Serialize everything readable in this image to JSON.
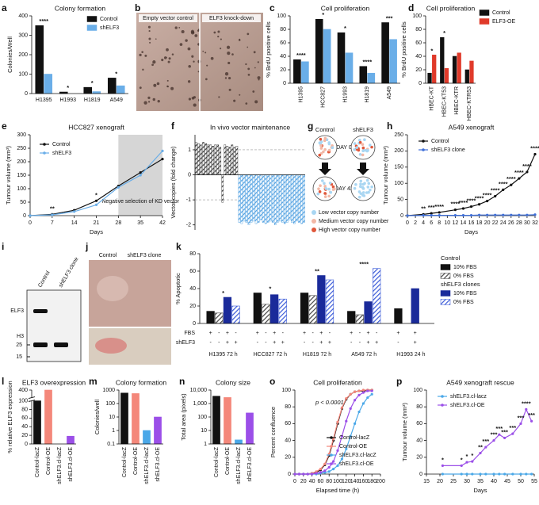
{
  "chart_data": [
    {
      "type": "bar",
      "label": "a",
      "title": "Colony formation",
      "ylabel": "Colonies/Well",
      "categories": [
        "H1395",
        "H1993",
        "H1819",
        "A549"
      ],
      "series": [
        {
          "name": "Control",
          "color": "#111111",
          "values": [
            350,
            8,
            32,
            80
          ]
        },
        {
          "name": "shELF3",
          "color": "#6aaee8",
          "values": [
            100,
            0,
            10,
            40
          ]
        }
      ],
      "annotations": [
        "****",
        "*",
        "*",
        "*"
      ],
      "ylim": [
        0,
        400
      ],
      "yticks": [
        0,
        100,
        200,
        300,
        400
      ]
    },
    {
      "type": "image",
      "label": "b",
      "captions": [
        "Empty vector control",
        "ELF3 knock-down"
      ]
    },
    {
      "type": "bar",
      "label": "c",
      "title": "Cell proliferation",
      "ylabel": "% BrdU positive cells",
      "categories": [
        "H1395",
        "HCC827",
        "H1993",
        "H1819",
        "A549"
      ],
      "series": [
        {
          "name": "Control",
          "color": "#111111",
          "values": [
            35,
            95,
            75,
            25,
            90
          ]
        },
        {
          "name": "shELF3",
          "color": "#6aaee8",
          "values": [
            32,
            80,
            45,
            15,
            65
          ]
        }
      ],
      "annotations": [
        "****",
        "*",
        "*",
        "****",
        "***"
      ],
      "ylim": [
        0,
        100
      ],
      "yticks": [
        0,
        20,
        40,
        60,
        80,
        100
      ]
    },
    {
      "type": "bar",
      "label": "d",
      "title": "Cell proliferation",
      "ylabel": "% BrdU positive cells",
      "categories": [
        "HBEC-KT",
        "HBEC-KT53",
        "HBEC-KTR",
        "HBEC-KTR53"
      ],
      "series": [
        {
          "name": "Control",
          "color": "#111111",
          "values": [
            15,
            68,
            40,
            20
          ]
        },
        {
          "name": "ELF3-OE",
          "color": "#e03a2a",
          "values": [
            42,
            22,
            45,
            33
          ]
        }
      ],
      "annotations": [
        "*",
        "*",
        null,
        null
      ],
      "ylim": [
        0,
        100
      ],
      "yticks": [
        0,
        20,
        40,
        60,
        80,
        100
      ]
    },
    {
      "type": "line",
      "label": "e",
      "title": "HCC827 xenograft",
      "ylabel": "Tumour volume (mm³)",
      "xlabel": "Days",
      "x": [
        0,
        7,
        14,
        21,
        28,
        35,
        42
      ],
      "series": [
        {
          "name": "Control",
          "color": "#111111",
          "values": [
            0,
            5,
            20,
            55,
            110,
            160,
            210
          ],
          "annotations": [
            null,
            "**",
            null,
            "*",
            null,
            null,
            null
          ]
        },
        {
          "name": "shELF3",
          "color": "#6aaee8",
          "values": [
            0,
            3,
            15,
            40,
            105,
            150,
            240
          ]
        }
      ],
      "shade": {
        "range": [
          28,
          42
        ],
        "label": "Negative selection of KD vector"
      },
      "xlim": [
        0,
        42
      ],
      "xticks": [
        0,
        7,
        14,
        21,
        28,
        35,
        42
      ],
      "ylim": [
        0,
        300
      ],
      "yticks": [
        0,
        50,
        100,
        150,
        200,
        250,
        300
      ]
    },
    {
      "type": "bar_sequence",
      "label": "f",
      "title": "In vivo vector maintenance",
      "ylabel": "Vector copies (fold change)",
      "series": [
        {
          "color": "#333333",
          "hatch": true,
          "values": [
            1.3,
            1.25,
            1.2,
            1.3,
            1.25,
            1.2,
            1.2,
            1.15,
            1.2,
            1.2,
            1.1,
            -1.1,
            1.2,
            1.15,
            1.1,
            1.2,
            1.1,
            1.15
          ]
        },
        {
          "color": "#4a9de0",
          "hatch": true,
          "values": [
            -1.9,
            -1.95,
            -1.85,
            -1.9,
            -2.0,
            -1.9,
            -1.85,
            -1.95,
            -1.9,
            -1.8,
            -1.9,
            -1.95,
            -1.9,
            -1.85,
            -1.9,
            -2.0,
            -1.9,
            -1.85,
            -1.9,
            -1.95,
            -1.9,
            -1.8,
            -1.9,
            -1.95,
            -1.85,
            -1.9,
            -1.95,
            -1.9
          ]
        }
      ],
      "ylim": [
        -2.2,
        1.6
      ],
      "yticks": [
        -2,
        -1,
        0,
        1
      ]
    },
    {
      "type": "schematic",
      "label": "g",
      "columns": [
        "Control",
        "shELF3"
      ],
      "days": [
        "DAY 0",
        "DAY 42"
      ],
      "legend": [
        {
          "label": "Low vector copy number",
          "color": "#a9d6f2"
        },
        {
          "label": "Medium vector copy number",
          "color": "#f2b8a6"
        },
        {
          "label": "High vector copy number",
          "color": "#e0573a"
        }
      ]
    },
    {
      "type": "line",
      "label": "h",
      "title": "A549 xenograft",
      "ylabel": "Tumour volume (mm³)",
      "xlabel": "Days",
      "x": [
        0,
        4,
        6,
        8,
        12,
        14,
        16,
        18,
        20,
        22,
        24,
        26,
        28,
        30,
        32
      ],
      "series": [
        {
          "name": "Control",
          "color": "#111111",
          "values": [
            0,
            4,
            7,
            10,
            18,
            22,
            28,
            35,
            45,
            60,
            80,
            95,
            115,
            135,
            190
          ],
          "annotations": [
            null,
            "**",
            "***",
            "****",
            "****",
            "****",
            "****",
            "****",
            "****",
            "****",
            "****",
            "****",
            "****",
            "****",
            "****"
          ]
        },
        {
          "name": "shELF3 clone",
          "color": "#3f6fd8",
          "values": [
            0,
            1,
            1,
            1,
            1,
            1,
            1,
            2,
            2,
            2,
            2,
            2,
            2,
            2,
            3
          ]
        }
      ],
      "xlim": [
        0,
        32
      ],
      "xticks": [
        0,
        2,
        4,
        6,
        8,
        10,
        12,
        14,
        16,
        18,
        20,
        22,
        24,
        26,
        28,
        30,
        32
      ],
      "ylim": [
        0,
        250
      ],
      "yticks": [
        0,
        50,
        100,
        150,
        200,
        250
      ]
    },
    {
      "type": "image",
      "label": "i",
      "captions": [
        "Control",
        "shELF3 clone"
      ],
      "bands": [
        "ELF3",
        "H3"
      ],
      "markers": [
        "25",
        "15"
      ]
    },
    {
      "type": "image",
      "label": "j",
      "captions": [
        "Control",
        "shELF3 clone"
      ]
    },
    {
      "type": "bar",
      "label": "k",
      "ylabel": "% Apoptotic",
      "categories": [
        "H1395 72 h",
        "HCC827 72 h",
        "H1819 72 h",
        "A549 72 h",
        "H1993 24 h"
      ],
      "legend_groups": [
        "Control",
        "shELF3 clones"
      ],
      "series": [
        {
          "name": "10% FBS",
          "color": "#111111",
          "values": [
            14,
            35,
            35,
            14,
            17
          ]
        },
        {
          "name": "0% FBS",
          "color": "#444444",
          "hatch": true,
          "values": [
            12,
            22,
            32,
            10,
            null
          ]
        },
        {
          "name": "10% FBS",
          "color": "#1a2a9a",
          "values": [
            30,
            33,
            55,
            25,
            40
          ]
        },
        {
          "name": "0% FBS",
          "color": "#3a5ad8",
          "hatch": true,
          "values": [
            20,
            28,
            50,
            63,
            null
          ]
        }
      ],
      "condition_rows": [
        {
          "label": "FBS",
          "values": [
            "+",
            "-",
            "+",
            "-"
          ]
        },
        {
          "label": "shELF3",
          "values": [
            "-",
            "-",
            "+",
            "+"
          ]
        }
      ],
      "annotations": [
        "*",
        "*",
        "**",
        "****",
        null
      ],
      "ylim": [
        0,
        80
      ],
      "yticks": [
        0,
        20,
        40,
        60,
        80
      ]
    },
    {
      "type": "bar",
      "label": "l",
      "title": "ELF3 overexpression",
      "ylabel": "% relative ELF3 expression",
      "categories": [
        "Control-lacZ",
        "Control-OE",
        "shELF3.cl-lacZ",
        "shELF3.cl-OE"
      ],
      "values": [
        100,
        400,
        0,
        18
      ],
      "colors": [
        "#111111",
        "#f4877a",
        "#4aa8e8",
        "#9b4fe8"
      ],
      "broken_y": true,
      "ylim": [
        0,
        400
      ],
      "yticks": [
        0,
        20,
        40,
        60,
        80,
        100,
        400
      ]
    },
    {
      "type": "bar",
      "label": "m",
      "title": "Colony formation",
      "ylabel": "Colonies/well",
      "categories": [
        "Control-lacZ",
        "Control-OE",
        "shELF3.cl-lacZ",
        "shELF3.cl-OE"
      ],
      "values": [
        600,
        550,
        1,
        10
      ],
      "colors": [
        "#111111",
        "#f4877a",
        "#4aa8e8",
        "#9b4fe8"
      ],
      "log_y": true,
      "ylim": [
        0.1,
        1000
      ],
      "yticks": [
        0.1,
        1,
        10,
        100,
        1000
      ]
    },
    {
      "type": "bar",
      "label": "n",
      "title": "Colony size",
      "ylabel": "Total area (pixels)",
      "categories": [
        "Control-lacZ",
        "Control-OE",
        "shELF3.cl-lacZ",
        "shELF3.cl-OE"
      ],
      "values": [
        3500,
        2800,
        2,
        200
      ],
      "colors": [
        "#111111",
        "#f4877a",
        "#4aa8e8",
        "#9b4fe8"
      ],
      "log_y": true,
      "ylim": [
        1,
        10000
      ],
      "yticks": [
        1,
        10,
        100,
        {
          "value": 1000,
          "label": "1,000"
        },
        {
          "value": 10000,
          "label": "10,000"
        }
      ]
    },
    {
      "type": "line",
      "label": "o",
      "title": "Cell proliferation",
      "ylabel": "Percent confluence",
      "xlabel": "Elapsed time (h)",
      "note": "p < 0.0001",
      "x": [
        0,
        10,
        20,
        30,
        40,
        50,
        60,
        70,
        80,
        90,
        100,
        110,
        120,
        130,
        140,
        150,
        160,
        170,
        180
      ],
      "series": [
        {
          "name": "Control-lacZ",
          "color": "#111111",
          "values": [
            0,
            0,
            0,
            0,
            1,
            2,
            5,
            11,
            22,
            40,
            60,
            78,
            89,
            95,
            98,
            99,
            99,
            100,
            100
          ]
        },
        {
          "name": "Control-OE",
          "color": "#f4877a",
          "values": [
            0,
            0,
            0,
            0,
            1,
            3,
            6,
            12,
            24,
            42,
            62,
            79,
            90,
            95,
            98,
            99,
            100,
            100,
            100
          ]
        },
        {
          "name": "shELF3.cl-lacZ",
          "color": "#4aa8e8",
          "values": [
            0,
            0,
            0,
            0,
            0,
            0,
            1,
            2,
            3,
            6,
            10,
            18,
            30,
            45,
            60,
            74,
            84,
            91,
            95
          ]
        },
        {
          "name": "shELF3.cl-OE",
          "color": "#9b4fe8",
          "values": [
            0,
            0,
            0,
            0,
            0,
            1,
            2,
            4,
            8,
            15,
            28,
            45,
            63,
            78,
            88,
            94,
            97,
            99,
            99
          ]
        }
      ],
      "xlim": [
        0,
        200
      ],
      "xticks": [
        0,
        20,
        40,
        60,
        80,
        100,
        120,
        140,
        160,
        180,
        200
      ],
      "ylim": [
        0,
        100
      ],
      "yticks": [
        0,
        20,
        40,
        60,
        80,
        100
      ]
    },
    {
      "type": "line",
      "label": "p",
      "title": "A549 xenograft rescue",
      "ylabel": "Tumour volume (mm³)",
      "xlabel": "Days",
      "x": [
        21,
        28,
        30,
        32,
        35,
        37,
        40,
        42,
        44,
        47,
        50,
        52,
        54
      ],
      "series": [
        {
          "name": "shELF3.cl-lacz",
          "color": "#4aa8e8",
          "values": [
            0,
            0,
            0,
            0,
            0,
            0,
            0,
            0,
            0,
            0,
            0,
            0,
            0
          ]
        },
        {
          "name": "shELF3.cl-OE",
          "color": "#9b4fe8",
          "values": [
            10,
            10,
            14,
            15,
            25,
            32,
            40,
            47,
            43,
            48,
            60,
            77,
            63
          ],
          "annotations": [
            "*",
            "*",
            "*",
            "*",
            "**",
            "***",
            "***",
            "***",
            "***",
            "***",
            "***",
            "****",
            "***"
          ]
        }
      ],
      "xlim": [
        15,
        55
      ],
      "xticks": [
        15,
        20,
        25,
        30,
        35,
        40,
        45,
        50,
        55
      ],
      "ylim": [
        0,
        100
      ],
      "yticks": [
        0,
        20,
        40,
        60,
        80,
        100
      ]
    }
  ]
}
